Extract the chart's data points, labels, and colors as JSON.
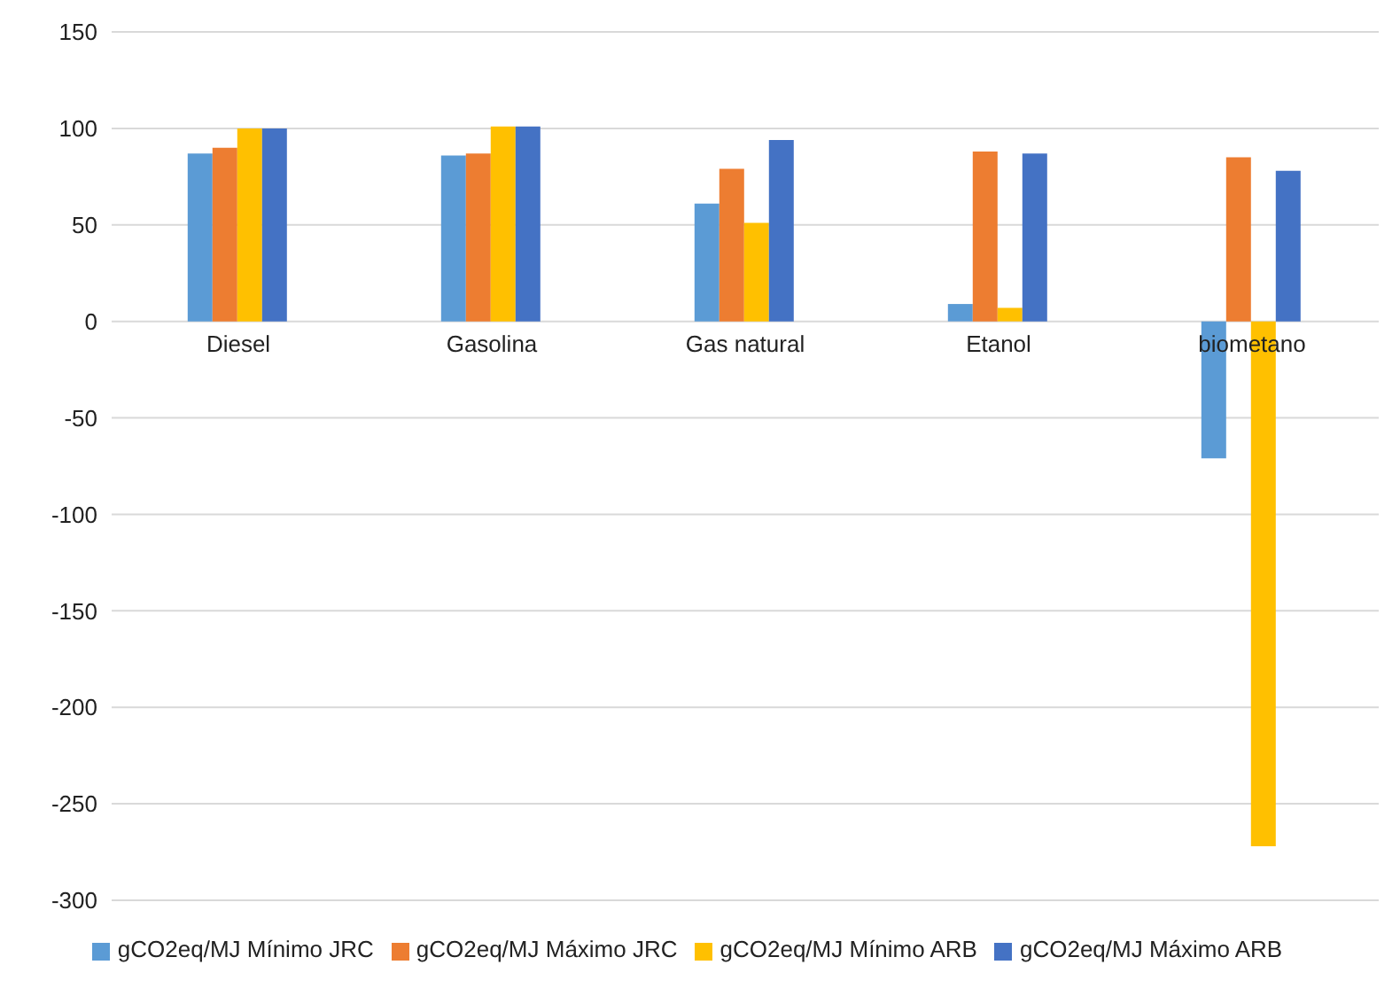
{
  "chart_data": {
    "type": "bar",
    "categories": [
      "Diesel",
      "Gasolina",
      "Gas natural",
      "Etanol",
      "biometano"
    ],
    "series": [
      {
        "name": "gCO2eq/MJ Mínimo JRC",
        "color": "#5b9bd5",
        "values": [
          87,
          86,
          61,
          9,
          -71
        ]
      },
      {
        "name": "gCO2eq/MJ Máximo JRC",
        "color": "#ed7d31",
        "values": [
          90,
          87,
          79,
          88,
          85
        ]
      },
      {
        "name": "gCO2eq/MJ Mínimo ARB",
        "color": "#ffc000",
        "values": [
          100,
          101,
          51,
          7,
          -272
        ]
      },
      {
        "name": "gCO2eq/MJ Máximo ARB",
        "color": "#4472c4",
        "values": [
          100,
          101,
          94,
          87,
          78
        ]
      }
    ],
    "ylim": [
      -300,
      150
    ],
    "yticks": [
      -300,
      -250,
      -200,
      -150,
      -100,
      -50,
      0,
      50,
      100,
      150
    ],
    "grid": "y",
    "legend": "bottom"
  }
}
